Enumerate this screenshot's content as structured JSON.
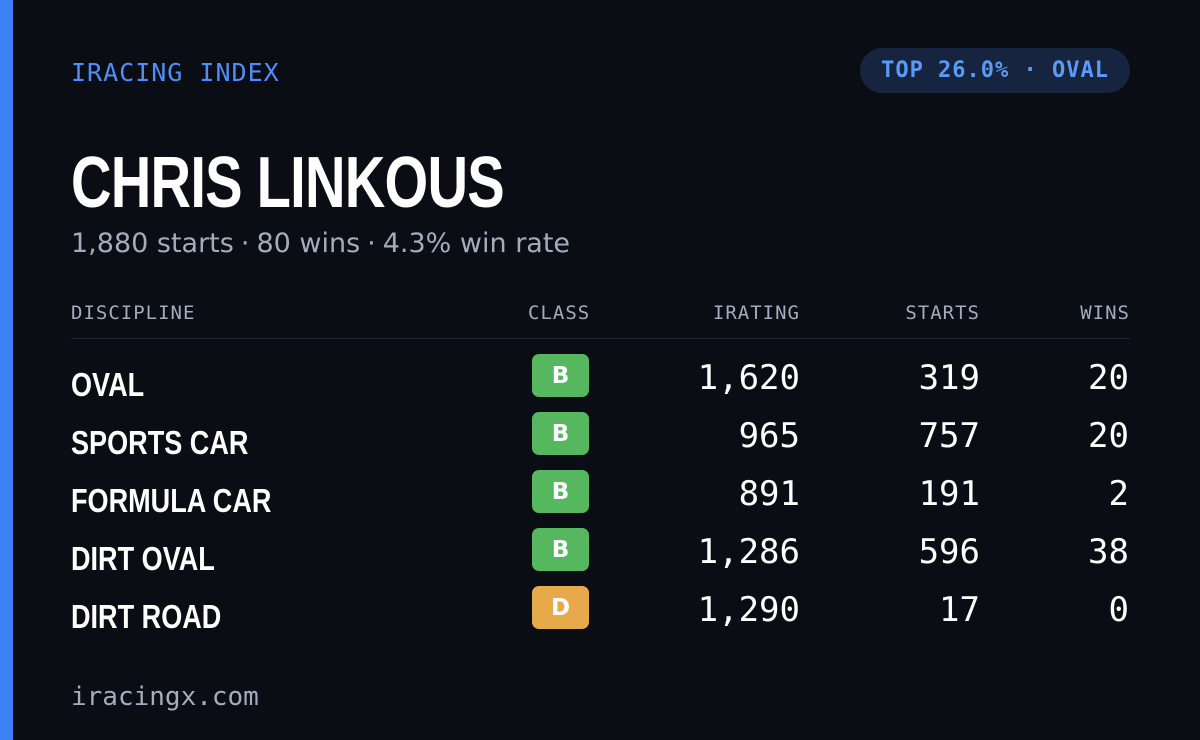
{
  "header": {
    "brand": "IRACING INDEX",
    "rank_pill": "TOP 26.0% · OVAL"
  },
  "driver": {
    "name": "CHRIS LINKOUS",
    "starts": "1,880 starts",
    "wins": "80 wins",
    "win_rate": "4.3% win rate",
    "separator": "·"
  },
  "table": {
    "columns": {
      "discipline": "DISCIPLINE",
      "class": "CLASS",
      "irating": "IRATING",
      "starts": "STARTS",
      "wins": "WINS"
    },
    "rows": [
      {
        "discipline": "OVAL",
        "class": "B",
        "irating": "1,620",
        "starts": "319",
        "wins": "20"
      },
      {
        "discipline": "SPORTS CAR",
        "class": "B",
        "irating": "965",
        "starts": "757",
        "wins": "20"
      },
      {
        "discipline": "FORMULA CAR",
        "class": "B",
        "irating": "891",
        "starts": "191",
        "wins": "2"
      },
      {
        "discipline": "DIRT OVAL",
        "class": "B",
        "irating": "1,286",
        "starts": "596",
        "wins": "38"
      },
      {
        "discipline": "DIRT ROAD",
        "class": "D",
        "irating": "1,290",
        "starts": "17",
        "wins": "0"
      }
    ]
  },
  "class_colors": {
    "B": "#55b85e",
    "D": "#e8a94a"
  },
  "colors": {
    "accent": "#3b82f6",
    "background": "#0b0d14"
  },
  "footer": {
    "site": "iracingx.com"
  }
}
